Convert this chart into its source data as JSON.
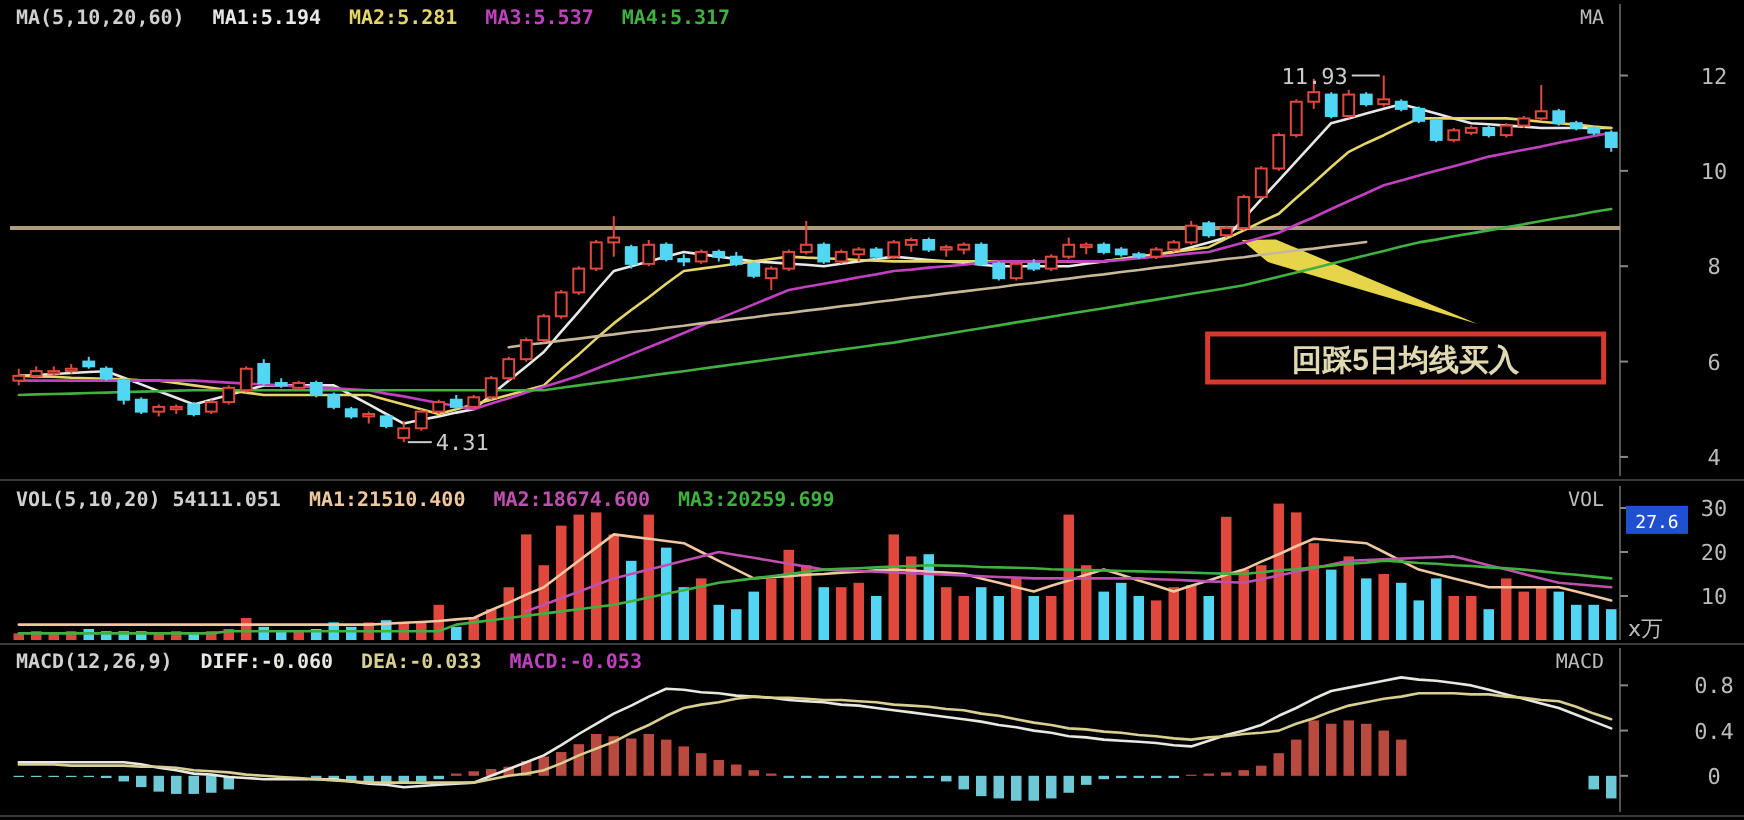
{
  "chart_data": [
    {
      "type": "candlestick",
      "title": "MA(5,10,20,60)",
      "categories": [
        null,
        null,
        null,
        null,
        null,
        null,
        null,
        null,
        null,
        null,
        null,
        null,
        null,
        null,
        null,
        null,
        null,
        null,
        null,
        null,
        null,
        null,
        null,
        null,
        null,
        null,
        null,
        null,
        null,
        null,
        null,
        null,
        null,
        null,
        null,
        null,
        null,
        null,
        null,
        null,
        null,
        null,
        null,
        null,
        null,
        null,
        null,
        null,
        null,
        null,
        null,
        null,
        null,
        null,
        null,
        null,
        null,
        null,
        null,
        null,
        null,
        null,
        null,
        null,
        null,
        null,
        null,
        null,
        null,
        null,
        null,
        null,
        null,
        null,
        null,
        null,
        null,
        null,
        null,
        null,
        null,
        null,
        null,
        null,
        null,
        null,
        null,
        null,
        null,
        null,
        null,
        null
      ],
      "ohlc": [
        [
          5.6,
          5.85,
          5.5,
          5.7
        ],
        [
          5.7,
          5.9,
          5.65,
          5.8
        ],
        [
          5.75,
          5.9,
          5.7,
          5.8
        ],
        [
          5.8,
          5.95,
          5.75,
          5.85
        ],
        [
          6.0,
          6.1,
          5.85,
          5.9
        ],
        [
          5.85,
          5.9,
          5.6,
          5.65
        ],
        [
          5.6,
          5.65,
          5.1,
          5.2
        ],
        [
          5.2,
          5.25,
          4.9,
          4.95
        ],
        [
          4.95,
          5.1,
          4.85,
          5.05
        ],
        [
          5.0,
          5.1,
          4.9,
          5.05
        ],
        [
          5.1,
          5.15,
          4.85,
          4.9
        ],
        [
          4.95,
          5.2,
          4.9,
          5.15
        ],
        [
          5.15,
          5.5,
          5.1,
          5.45
        ],
        [
          5.4,
          5.9,
          5.35,
          5.85
        ],
        [
          5.95,
          6.05,
          5.5,
          5.55
        ],
        [
          5.55,
          5.65,
          5.45,
          5.5
        ],
        [
          5.45,
          5.6,
          5.4,
          5.55
        ],
        [
          5.55,
          5.6,
          5.25,
          5.3
        ],
        [
          5.3,
          5.35,
          5.0,
          5.05
        ],
        [
          5.0,
          5.05,
          4.8,
          4.85
        ],
        [
          4.85,
          4.95,
          4.7,
          4.9
        ],
        [
          4.85,
          4.9,
          4.6,
          4.65
        ],
        [
          4.4,
          4.75,
          4.31,
          4.6
        ],
        [
          4.6,
          5.0,
          4.55,
          4.95
        ],
        [
          4.95,
          5.2,
          4.9,
          5.15
        ],
        [
          5.2,
          5.3,
          5.0,
          5.05
        ],
        [
          5.05,
          5.3,
          5.0,
          5.25
        ],
        [
          5.25,
          5.7,
          5.2,
          5.65
        ],
        [
          5.65,
          6.1,
          5.6,
          6.05
        ],
        [
          6.05,
          6.5,
          6.0,
          6.45
        ],
        [
          6.45,
          7.0,
          6.4,
          6.95
        ],
        [
          6.95,
          7.5,
          6.9,
          7.45
        ],
        [
          7.45,
          8.0,
          7.4,
          7.95
        ],
        [
          7.95,
          8.55,
          7.9,
          8.5
        ],
        [
          8.5,
          9.05,
          8.2,
          8.6
        ],
        [
          8.4,
          8.45,
          7.95,
          8.05
        ],
        [
          8.05,
          8.55,
          8.0,
          8.45
        ],
        [
          8.45,
          8.5,
          8.1,
          8.15
        ],
        [
          8.15,
          8.25,
          8.0,
          8.1
        ],
        [
          8.1,
          8.35,
          8.05,
          8.3
        ],
        [
          8.3,
          8.35,
          8.1,
          8.2
        ],
        [
          8.2,
          8.3,
          8.0,
          8.05
        ],
        [
          8.05,
          8.1,
          7.75,
          7.8
        ],
        [
          7.75,
          8.0,
          7.5,
          7.95
        ],
        [
          7.95,
          8.35,
          7.9,
          8.3
        ],
        [
          8.3,
          8.95,
          8.25,
          8.45
        ],
        [
          8.45,
          8.5,
          8.05,
          8.1
        ],
        [
          8.1,
          8.35,
          8.05,
          8.3
        ],
        [
          8.25,
          8.4,
          8.1,
          8.35
        ],
        [
          8.35,
          8.4,
          8.15,
          8.2
        ],
        [
          8.2,
          8.55,
          8.15,
          8.5
        ],
        [
          8.45,
          8.6,
          8.3,
          8.55
        ],
        [
          8.55,
          8.6,
          8.3,
          8.35
        ],
        [
          8.35,
          8.45,
          8.2,
          8.4
        ],
        [
          8.35,
          8.5,
          8.25,
          8.45
        ],
        [
          8.45,
          8.5,
          8.0,
          8.05
        ],
        [
          8.05,
          8.1,
          7.7,
          7.75
        ],
        [
          7.75,
          8.1,
          7.7,
          8.05
        ],
        [
          8.05,
          8.15,
          7.9,
          7.95
        ],
        [
          7.95,
          8.25,
          7.9,
          8.2
        ],
        [
          8.2,
          8.6,
          8.15,
          8.45
        ],
        [
          8.4,
          8.5,
          8.25,
          8.45
        ],
        [
          8.45,
          8.5,
          8.25,
          8.3
        ],
        [
          8.35,
          8.4,
          8.2,
          8.25
        ],
        [
          8.25,
          8.3,
          8.15,
          8.2
        ],
        [
          8.2,
          8.4,
          8.15,
          8.35
        ],
        [
          8.35,
          8.55,
          8.3,
          8.5
        ],
        [
          8.5,
          8.95,
          8.45,
          8.85
        ],
        [
          8.9,
          8.95,
          8.6,
          8.65
        ],
        [
          8.65,
          8.85,
          8.6,
          8.8
        ],
        [
          8.8,
          9.5,
          8.75,
          9.45
        ],
        [
          9.45,
          10.1,
          9.4,
          10.05
        ],
        [
          10.05,
          10.8,
          10.0,
          10.75
        ],
        [
          10.75,
          11.5,
          10.7,
          11.45
        ],
        [
          11.45,
          11.93,
          11.3,
          11.65
        ],
        [
          11.6,
          11.65,
          11.1,
          11.15
        ],
        [
          11.15,
          11.7,
          11.1,
          11.6
        ],
        [
          11.6,
          11.65,
          11.35,
          11.4
        ],
        [
          11.4,
          12.0,
          11.35,
          11.5
        ],
        [
          11.45,
          11.5,
          11.25,
          11.3
        ],
        [
          11.3,
          11.35,
          11.0,
          11.05
        ],
        [
          11.05,
          11.1,
          10.6,
          10.65
        ],
        [
          10.65,
          10.9,
          10.6,
          10.85
        ],
        [
          10.8,
          10.95,
          10.75,
          10.9
        ],
        [
          10.9,
          10.95,
          10.7,
          10.75
        ],
        [
          10.75,
          11.0,
          10.7,
          10.95
        ],
        [
          10.95,
          11.15,
          10.9,
          11.1
        ],
        [
          11.1,
          11.8,
          11.05,
          11.25
        ],
        [
          11.25,
          11.3,
          10.95,
          11.0
        ],
        [
          11.0,
          11.05,
          10.85,
          10.9
        ],
        [
          10.9,
          10.95,
          10.75,
          10.8
        ],
        [
          10.8,
          10.85,
          10.4,
          10.5
        ]
      ],
      "colors": [
        "#e0483e",
        "#e0483e",
        "#e0483e",
        "#e0483e",
        "#52d6f4",
        "#52d6f4",
        "#52d6f4",
        "#52d6f4",
        "#e0483e",
        "#e0483e",
        "#52d6f4",
        "#e0483e",
        "#e0483e",
        "#e0483e",
        "#52d6f4",
        "#52d6f4",
        "#e0483e",
        "#52d6f4",
        "#52d6f4",
        "#52d6f4",
        "#e0483e",
        "#52d6f4",
        "#e0483e",
        "#e0483e",
        "#e0483e",
        "#52d6f4",
        "#e0483e",
        "#e0483e",
        "#e0483e",
        "#e0483e",
        "#e0483e",
        "#e0483e",
        "#e0483e",
        "#e0483e",
        "#e0483e",
        "#52d6f4",
        "#e0483e",
        "#52d6f4",
        "#52d6f4",
        "#e0483e",
        "#52d6f4",
        "#52d6f4",
        "#52d6f4",
        "#e0483e",
        "#e0483e",
        "#e0483e",
        "#52d6f4",
        "#e0483e",
        "#e0483e",
        "#52d6f4",
        "#e0483e",
        "#e0483e",
        "#52d6f4",
        "#e0483e",
        "#e0483e",
        "#52d6f4",
        "#52d6f4",
        "#e0483e",
        "#52d6f4",
        "#e0483e",
        "#e0483e",
        "#e0483e",
        "#52d6f4",
        "#52d6f4",
        "#52d6f4",
        "#e0483e",
        "#e0483e",
        "#e0483e",
        "#52d6f4",
        "#e0483e",
        "#e0483e",
        "#e0483e",
        "#e0483e",
        "#e0483e",
        "#e0483e",
        "#52d6f4",
        "#e0483e",
        "#52d6f4",
        "#e0483e",
        "#52d6f4",
        "#52d6f4",
        "#52d6f4",
        "#e0483e",
        "#e0483e",
        "#52d6f4",
        "#e0483e",
        "#e0483e",
        "#e0483e",
        "#52d6f4",
        "#52d6f4",
        "#52d6f4",
        "#52d6f4"
      ],
      "series": [
        {
          "type": "line",
          "name": "MA1:5.194",
          "color": "#e8e8e8",
          "values": [
            5.7,
            5.72,
            5.74,
            5.76,
            5.78,
            5.8,
            5.66,
            5.52,
            5.38,
            5.24,
            5.1,
            5.2,
            5.3,
            5.4,
            5.5,
            5.5,
            5.5,
            5.5,
            5.5,
            5.3,
            5.1,
            4.9,
            4.7,
            4.78,
            4.85,
            4.93,
            5.0,
            5.3,
            5.6,
            5.9,
            6.2,
            6.63,
            7.05,
            7.48,
            7.9,
            8.0,
            8.1,
            8.2,
            8.3,
            8.25,
            8.2,
            8.15,
            8.1,
            8.08,
            8.05,
            8.03,
            8.0,
            8.05,
            8.1,
            8.15,
            8.2,
            8.17,
            8.13,
            8.1,
            8.07,
            8.03,
            8.0,
            8.0,
            8.0,
            8.0,
            8.0,
            8.05,
            8.1,
            8.15,
            8.2,
            8.25,
            8.3,
            8.4,
            8.5,
            8.6,
            9.0,
            9.4,
            9.8,
            10.2,
            10.6,
            11.0,
            11.1,
            11.2,
            11.3,
            11.4,
            11.3,
            11.2,
            11.1,
            11.0,
            10.98,
            10.95,
            10.93,
            10.9,
            10.9,
            10.9,
            10.9,
            10.9
          ]
        },
        {
          "type": "line",
          "name": "MA2:5.281",
          "color": "#e6d66a",
          "values": [
            5.7,
            5.69,
            5.68,
            5.66,
            5.65,
            5.64,
            5.63,
            5.61,
            5.6,
            5.55,
            5.5,
            5.45,
            5.4,
            5.35,
            5.3,
            5.3,
            5.3,
            5.3,
            5.3,
            5.3,
            5.3,
            5.2,
            5.1,
            5.0,
            4.9,
            5.0,
            5.1,
            5.2,
            5.3,
            5.4,
            5.5,
            5.83,
            6.15,
            6.48,
            6.8,
            7.08,
            7.35,
            7.63,
            7.9,
            7.95,
            8.0,
            8.05,
            8.1,
            8.15,
            8.2,
            8.18,
            8.17,
            8.15,
            8.13,
            8.12,
            8.1,
            8.1,
            8.1,
            8.1,
            8.1,
            8.1,
            8.1,
            8.1,
            8.1,
            8.1,
            8.1,
            8.1,
            8.1,
            8.15,
            8.2,
            8.25,
            8.3,
            8.35,
            8.4,
            8.58,
            8.75,
            8.93,
            9.1,
            9.43,
            9.75,
            10.08,
            10.4,
            10.58,
            10.75,
            10.93,
            11.1,
            11.1,
            11.1,
            11.1,
            11.1,
            11.1,
            11.07,
            11.03,
            11.0,
            10.97,
            10.93,
            10.9
          ]
        },
        {
          "type": "line",
          "name": "MA3:5.537",
          "color": "#c040c0",
          "values": [
            5.6,
            5.6,
            5.6,
            5.6,
            5.6,
            5.6,
            5.6,
            5.6,
            5.6,
            5.6,
            5.6,
            5.58,
            5.56,
            5.54,
            5.52,
            5.5,
            5.48,
            5.46,
            5.44,
            5.42,
            5.4,
            5.33,
            5.27,
            5.2,
            5.13,
            5.07,
            5.0,
            5.12,
            5.23,
            5.35,
            5.47,
            5.58,
            5.7,
            5.85,
            6.0,
            6.15,
            6.3,
            6.45,
            6.6,
            6.75,
            6.9,
            7.05,
            7.2,
            7.35,
            7.5,
            7.57,
            7.63,
            7.7,
            7.77,
            7.83,
            7.9,
            7.93,
            7.97,
            8.0,
            8.03,
            8.07,
            8.1,
            8.1,
            8.1,
            8.1,
            8.1,
            8.1,
            8.1,
            8.13,
            8.17,
            8.2,
            8.23,
            8.27,
            8.3,
            8.4,
            8.5,
            8.6,
            8.7,
            8.87,
            9.03,
            9.2,
            9.37,
            9.53,
            9.7,
            9.8,
            9.9,
            10.0,
            10.1,
            10.2,
            10.3,
            10.37,
            10.44,
            10.51,
            10.59,
            10.66,
            10.73,
            10.8
          ]
        },
        {
          "type": "line",
          "name": "MA4:5.317",
          "color": "#40b040",
          "values": [
            5.3,
            5.31,
            5.32,
            5.33,
            5.34,
            5.35,
            5.36,
            5.37,
            5.38,
            5.39,
            5.4,
            5.4,
            5.4,
            5.4,
            5.4,
            5.4,
            5.4,
            5.4,
            5.4,
            5.4,
            5.4,
            5.4,
            5.4,
            5.4,
            5.4,
            5.4,
            5.4,
            5.4,
            5.4,
            5.4,
            5.4,
            5.45,
            5.5,
            5.55,
            5.6,
            5.65,
            5.7,
            5.75,
            5.8,
            5.85,
            5.9,
            5.95,
            6.0,
            6.05,
            6.1,
            6.15,
            6.2,
            6.25,
            6.3,
            6.35,
            6.4,
            6.46,
            6.52,
            6.58,
            6.64,
            6.7,
            6.76,
            6.82,
            6.88,
            6.94,
            7.0,
            7.06,
            7.12,
            7.18,
            7.24,
            7.3,
            7.36,
            7.42,
            7.48,
            7.54,
            7.6,
            7.69,
            7.78,
            7.87,
            7.96,
            8.05,
            8.14,
            8.23,
            8.32,
            8.41,
            8.5,
            8.56,
            8.63,
            8.69,
            8.75,
            8.82,
            8.88,
            8.95,
            9.01,
            9.07,
            9.14,
            9.2
          ]
        },
        {
          "type": "line",
          "color": "#c8b898",
          "values": [
            null,
            null,
            null,
            null,
            null,
            null,
            null,
            null,
            null,
            null,
            null,
            null,
            null,
            null,
            null,
            null,
            null,
            null,
            null,
            null,
            null,
            null,
            null,
            null,
            null,
            null,
            null,
            null,
            6.3,
            6.35,
            6.39,
            6.44,
            6.48,
            6.53,
            6.57,
            6.62,
            6.66,
            6.71,
            6.75,
            6.8,
            6.84,
            6.89,
            6.93,
            6.98,
            7.02,
            7.07,
            7.11,
            7.16,
            7.2,
            7.25,
            7.29,
            7.34,
            7.38,
            7.43,
            7.47,
            7.52,
            7.56,
            7.61,
            7.65,
            7.7,
            7.74,
            7.79,
            7.83,
            7.88,
            7.92,
            7.97,
            8.01,
            8.06,
            8.1,
            8.15,
            8.19,
            8.24,
            8.28,
            8.33,
            8.37,
            8.42,
            8.46,
            8.51,
            null,
            null,
            null,
            null,
            null,
            null,
            null,
            null,
            null,
            null,
            null,
            null,
            null,
            null
          ]
        }
      ],
      "ylim": [
        3.6,
        13.5
      ],
      "yticks": [
        4,
        6,
        8,
        10,
        12
      ],
      "tick_labels": "y",
      "ref_lines": [
        {
          "axis": "y",
          "value": 8.8,
          "color": "#b09a80"
        }
      ],
      "annotations": [
        "MA",
        "11.93",
        "4.31",
        "回踩5日均线买入"
      ]
    },
    {
      "type": "bar",
      "title": "VOL(5,10,20) 54111.051",
      "ylabel": "x万",
      "categories": [
        null,
        null,
        null,
        null,
        null,
        null,
        null,
        null,
        null,
        null,
        null,
        null,
        null,
        null,
        null,
        null,
        null,
        null,
        null,
        null,
        null,
        null,
        null,
        null,
        null,
        null,
        null,
        null,
        null,
        null,
        null,
        null,
        null,
        null,
        null,
        null,
        null,
        null,
        null,
        null,
        null,
        null,
        null,
        null,
        null,
        null,
        null,
        null,
        null,
        null,
        null,
        null,
        null,
        null,
        null,
        null,
        null,
        null,
        null,
        null,
        null,
        null,
        null,
        null,
        null,
        null,
        null,
        null,
        null,
        null,
        null,
        null,
        null,
        null,
        null,
        null,
        null,
        null,
        null,
        null,
        null,
        null,
        null,
        null,
        null,
        null,
        null,
        null,
        null,
        null,
        null,
        null
      ],
      "series": [
        {
          "type": "bar",
          "values": [
            1.5,
            2,
            1.5,
            2,
            2.5,
            2,
            2,
            2,
            1.5,
            2,
            1.5,
            2,
            2.5,
            5,
            3,
            2,
            2,
            2.5,
            4,
            3,
            4,
            4.5,
            4,
            4,
            8,
            3,
            5,
            7,
            12,
            24,
            17,
            26,
            28.5,
            29,
            24,
            18,
            28.5,
            21,
            12,
            14,
            8,
            7,
            11,
            14,
            20.5,
            17,
            12,
            12,
            13,
            10,
            24,
            19,
            19.5,
            12,
            10,
            12,
            10,
            14,
            10,
            10,
            28.5,
            17,
            11,
            13,
            10,
            9,
            12,
            12.5,
            10,
            28,
            16,
            17,
            31,
            29,
            22,
            16,
            19,
            14,
            15,
            13,
            9,
            14,
            10,
            10,
            7,
            14,
            11,
            12,
            11,
            8,
            8,
            7
          ],
          "colors": [
            "#e0483e",
            "#e0483e",
            "#e0483e",
            "#e0483e",
            "#52d6f4",
            "#52d6f4",
            "#52d6f4",
            "#52d6f4",
            "#e0483e",
            "#e0483e",
            "#52d6f4",
            "#e0483e",
            "#e0483e",
            "#e0483e",
            "#52d6f4",
            "#52d6f4",
            "#e0483e",
            "#52d6f4",
            "#52d6f4",
            "#52d6f4",
            "#e0483e",
            "#52d6f4",
            "#e0483e",
            "#e0483e",
            "#e0483e",
            "#52d6f4",
            "#e0483e",
            "#e0483e",
            "#e0483e",
            "#e0483e",
            "#e0483e",
            "#e0483e",
            "#e0483e",
            "#e0483e",
            "#e0483e",
            "#52d6f4",
            "#e0483e",
            "#52d6f4",
            "#52d6f4",
            "#e0483e",
            "#52d6f4",
            "#52d6f4",
            "#52d6f4",
            "#e0483e",
            "#e0483e",
            "#e0483e",
            "#52d6f4",
            "#e0483e",
            "#e0483e",
            "#52d6f4",
            "#e0483e",
            "#e0483e",
            "#52d6f4",
            "#e0483e",
            "#e0483e",
            "#52d6f4",
            "#52d6f4",
            "#e0483e",
            "#52d6f4",
            "#e0483e",
            "#e0483e",
            "#e0483e",
            "#52d6f4",
            "#52d6f4",
            "#52d6f4",
            "#e0483e",
            "#e0483e",
            "#e0483e",
            "#52d6f4",
            "#e0483e",
            "#e0483e",
            "#e0483e",
            "#e0483e",
            "#e0483e",
            "#e0483e",
            "#52d6f4",
            "#e0483e",
            "#52d6f4",
            "#e0483e",
            "#52d6f4",
            "#52d6f4",
            "#52d6f4",
            "#e0483e",
            "#e0483e",
            "#52d6f4",
            "#e0483e",
            "#e0483e",
            "#e0483e",
            "#52d6f4",
            "#52d6f4",
            "#52d6f4",
            "#52d6f4"
          ]
        },
        {
          "type": "line",
          "name": "MA1:21510.400",
          "color": "#f0c8a0",
          "values": [
            3.5,
            3.5,
            3.5,
            3.5,
            3.5,
            3.5,
            3.5,
            3.5,
            3.5,
            3.5,
            3.5,
            3.5,
            3.5,
            3.5,
            3.5,
            3.5,
            3.5,
            3.5,
            3.5,
            3.5,
            3.5,
            3.7,
            3.9,
            4.1,
            4.3,
            4.7,
            5,
            6.8,
            8.5,
            10.3,
            12,
            15,
            18,
            21,
            24,
            23.5,
            23,
            22.5,
            22,
            20,
            18,
            16,
            14,
            14.3,
            14.5,
            14.8,
            15,
            15.3,
            15.5,
            15.8,
            16,
            15.8,
            15.5,
            15.3,
            15,
            14,
            13,
            12,
            11,
            12.3,
            13.5,
            14.8,
            16,
            14.8,
            13.5,
            12.3,
            11,
            12.3,
            13.5,
            14.8,
            16,
            17.8,
            19.5,
            21.3,
            23,
            22.7,
            22.3,
            22,
            20,
            18,
            16,
            15,
            14,
            13,
            12,
            12,
            12,
            12,
            12,
            11,
            10,
            9
          ]
        },
        {
          "type": "line",
          "name": "MA2:18674.600",
          "color": "#c050b0",
          "values": [
            null,
            null,
            null,
            null,
            null,
            null,
            null,
            null,
            null,
            null,
            null,
            null,
            null,
            null,
            null,
            null,
            null,
            null,
            null,
            null,
            null,
            null,
            null,
            null,
            null,
            null,
            null,
            null,
            null,
            6.5,
            8,
            9.5,
            11,
            12.5,
            14,
            15,
            16,
            17,
            18,
            19,
            20,
            19.3,
            18.7,
            18,
            17.3,
            16.7,
            16,
            15.8,
            15.7,
            15.5,
            15.3,
            15.2,
            15,
            14.8,
            14.7,
            14.5,
            14.3,
            14.2,
            14,
            14,
            14,
            14,
            14,
            14,
            14,
            13.8,
            13.7,
            13.5,
            13.3,
            13.2,
            13,
            13.8,
            14.7,
            15.5,
            16.3,
            17.2,
            18,
            18.2,
            18.3,
            18.5,
            18.7,
            18.8,
            19,
            18,
            17,
            16,
            15,
            14,
            13,
            12.7,
            12.3,
            12
          ]
        },
        {
          "type": "line",
          "name": "MA3:20259.699",
          "color": "#40b040",
          "values": [
            1.5,
            1.5,
            1.5,
            1.5,
            1.5,
            1.5,
            1.5,
            1.5,
            1.5,
            1.5,
            1.5,
            1.5,
            2,
            2,
            2,
            2,
            2,
            2,
            2,
            2,
            2,
            2,
            2,
            2,
            2,
            3.5,
            4,
            4.5,
            5,
            5.5,
            6,
            6.5,
            7,
            7.5,
            8,
            8.8,
            9.7,
            10.5,
            11.3,
            12.2,
            13,
            13.5,
            14,
            14.5,
            15,
            15.5,
            16,
            16.2,
            16.3,
            16.5,
            16.7,
            16.8,
            17,
            16.9,
            16.8,
            16.6,
            16.5,
            16.4,
            16.3,
            16.1,
            16,
            15.9,
            15.8,
            15.7,
            15.6,
            15.5,
            15.4,
            15.3,
            15.2,
            15.1,
            15,
            15.4,
            15.8,
            16.1,
            16.5,
            16.9,
            17.3,
            17.6,
            18,
            17.8,
            17.5,
            17.3,
            17,
            16.8,
            16.5,
            16.3,
            16,
            15.6,
            15.2,
            14.8,
            14.4,
            14
          ]
        }
      ],
      "ylim": [
        0,
        35
      ],
      "yticks": [
        10,
        20,
        30
      ],
      "tick_labels": "y",
      "annotations": [
        "VOL",
        "27.6"
      ]
    },
    {
      "type": "bar",
      "title": "MACD(12,26,9)",
      "categories": [
        null,
        null,
        null,
        null,
        null,
        null,
        null,
        null,
        null,
        null,
        null,
        null,
        null,
        null,
        null,
        null,
        null,
        null,
        null,
        null,
        null,
        null,
        null,
        null,
        null,
        null,
        null,
        null,
        null,
        null,
        null,
        null,
        null,
        null,
        null,
        null,
        null,
        null,
        null,
        null,
        null,
        null,
        null,
        null,
        null,
        null,
        null,
        null,
        null,
        null,
        null,
        null,
        null,
        null,
        null,
        null,
        null,
        null,
        null,
        null,
        null,
        null,
        null,
        null,
        null,
        null,
        null,
        null,
        null,
        null,
        null,
        null,
        null,
        null,
        null,
        null,
        null,
        null,
        null,
        null,
        null,
        null,
        null,
        null,
        null,
        null,
        null,
        null,
        null,
        null,
        null,
        null
      ],
      "series": [
        {
          "type": "line",
          "name": "DIFF:-0.060",
          "color": "#e8e8e0",
          "values": [
            0.12,
            0.12,
            0.12,
            0.12,
            0.12,
            0.12,
            0.12,
            0.1,
            0.07,
            0.05,
            0.02,
            0.01,
            -0.01,
            -0.02,
            -0.03,
            -0.03,
            -0.03,
            -0.03,
            -0.03,
            -0.05,
            -0.07,
            -0.08,
            -0.1,
            -0.09,
            -0.08,
            -0.07,
            -0.06,
            0,
            0.06,
            0.12,
            0.18,
            0.27,
            0.37,
            0.46,
            0.55,
            0.62,
            0.7,
            0.77,
            0.76,
            0.74,
            0.73,
            0.71,
            0.7,
            0.69,
            0.67,
            0.66,
            0.65,
            0.63,
            0.62,
            0.6,
            0.58,
            0.56,
            0.54,
            0.52,
            0.5,
            0.48,
            0.45,
            0.43,
            0.4,
            0.38,
            0.35,
            0.34,
            0.32,
            0.31,
            0.3,
            0.29,
            0.27,
            0.26,
            0.31,
            0.36,
            0.4,
            0.45,
            0.53,
            0.6,
            0.68,
            0.75,
            0.78,
            0.81,
            0.84,
            0.87,
            0.85,
            0.84,
            0.82,
            0.8,
            0.76,
            0.72,
            0.68,
            0.64,
            0.6,
            0.54,
            0.48,
            0.42
          ]
        },
        {
          "type": "line",
          "name": "DEA:-0.033",
          "color": "#d8d090",
          "values": [
            0.1,
            0.1,
            0.1,
            0.09,
            0.09,
            0.09,
            0.09,
            0.08,
            0.08,
            0.07,
            0.05,
            0.04,
            0.03,
            0.01,
            0,
            -0.01,
            -0.02,
            -0.03,
            -0.04,
            -0.05,
            -0.06,
            -0.06,
            -0.06,
            -0.06,
            -0.06,
            -0.06,
            -0.06,
            -0.03,
            0,
            0.02,
            0.05,
            0.11,
            0.18,
            0.24,
            0.3,
            0.38,
            0.45,
            0.53,
            0.6,
            0.63,
            0.65,
            0.68,
            0.7,
            0.69,
            0.69,
            0.68,
            0.67,
            0.67,
            0.66,
            0.65,
            0.63,
            0.62,
            0.61,
            0.59,
            0.58,
            0.55,
            0.53,
            0.5,
            0.47,
            0.45,
            0.42,
            0.41,
            0.39,
            0.38,
            0.36,
            0.35,
            0.33,
            0.32,
            0.34,
            0.35,
            0.37,
            0.38,
            0.4,
            0.46,
            0.51,
            0.57,
            0.62,
            0.65,
            0.68,
            0.7,
            0.73,
            0.73,
            0.73,
            0.72,
            0.72,
            0.7,
            0.69,
            0.67,
            0.66,
            0.61,
            0.55,
            0.5
          ]
        },
        {
          "type": "bar",
          "color": "#c040c0",
          "values": [
            -0.01,
            -0.01,
            -0.01,
            -0.01,
            -0.01,
            -0.02,
            -0.05,
            -0.1,
            -0.14,
            -0.16,
            -0.16,
            -0.15,
            -0.12,
            null,
            null,
            null,
            null,
            -0.02,
            -0.03,
            -0.04,
            -0.06,
            -0.07,
            -0.07,
            -0.05,
            -0.03,
            0.02,
            0.04,
            0.06,
            0.08,
            0.13,
            0.17,
            0.21,
            0.28,
            0.37,
            0.35,
            0.33,
            0.37,
            0.32,
            0.26,
            0.2,
            0.14,
            0.1,
            0.05,
            0.02,
            -0.02,
            -0.02,
            -0.02,
            -0.02,
            -0.02,
            -0.02,
            -0.02,
            -0.02,
            -0.02,
            -0.05,
            -0.12,
            -0.18,
            -0.2,
            -0.22,
            -0.22,
            -0.2,
            -0.15,
            -0.08,
            -0.03,
            -0.02,
            -0.02,
            -0.02,
            -0.02,
            0.01,
            0.02,
            0.03,
            0.05,
            0.09,
            0.2,
            0.32,
            0.49,
            0.46,
            0.49,
            0.46,
            0.4,
            0.32,
            null,
            null,
            null,
            null,
            null,
            null,
            null,
            null,
            null,
            null,
            -0.12,
            -0.2
          ],
          "colors": [
            "#6fc8d6",
            "#6fc8d6",
            "#6fc8d6",
            "#6fc8d6",
            "#6fc8d6",
            "#6fc8d6",
            "#6fc8d6",
            "#6fc8d6",
            "#6fc8d6",
            "#6fc8d6",
            "#6fc8d6",
            "#6fc8d6",
            "#6fc8d6",
            null,
            null,
            null,
            null,
            "#6fc8d6",
            "#6fc8d6",
            "#6fc8d6",
            "#6fc8d6",
            "#6fc8d6",
            "#6fc8d6",
            "#6fc8d6",
            "#6fc8d6",
            "#b84a40",
            "#b84a40",
            "#b84a40",
            "#b84a40",
            "#b84a40",
            "#b84a40",
            "#b84a40",
            "#b84a40",
            "#b84a40",
            "#b84a40",
            "#b84a40",
            "#b84a40",
            "#b84a40",
            "#b84a40",
            "#b84a40",
            "#b84a40",
            "#b84a40",
            "#b84a40",
            "#b84a40",
            "#6fc8d6",
            "#6fc8d6",
            "#6fc8d6",
            "#6fc8d6",
            "#6fc8d6",
            "#6fc8d6",
            "#6fc8d6",
            "#6fc8d6",
            "#6fc8d6",
            "#6fc8d6",
            "#6fc8d6",
            "#6fc8d6",
            "#6fc8d6",
            "#6fc8d6",
            "#6fc8d6",
            "#6fc8d6",
            "#6fc8d6",
            "#6fc8d6",
            "#6fc8d6",
            "#6fc8d6",
            "#6fc8d6",
            "#6fc8d6",
            "#6fc8d6",
            "#b84a40",
            "#b84a40",
            "#b84a40",
            "#b84a40",
            "#b84a40",
            "#b84a40",
            "#b84a40",
            "#b84a40",
            "#b84a40",
            "#b84a40",
            "#b84a40",
            "#b84a40",
            "#b84a40",
            null,
            null,
            null,
            null,
            null,
            null,
            null,
            null,
            null,
            null,
            "#6fc8d6",
            "#6fc8d6"
          ]
        }
      ],
      "ylim": [
        -0.32,
        1.13
      ],
      "yticks": [
        0,
        0.4,
        0.8
      ],
      "tick_labels": "y",
      "annotations": [
        "MACD",
        "MACD:-0.053"
      ]
    }
  ]
}
